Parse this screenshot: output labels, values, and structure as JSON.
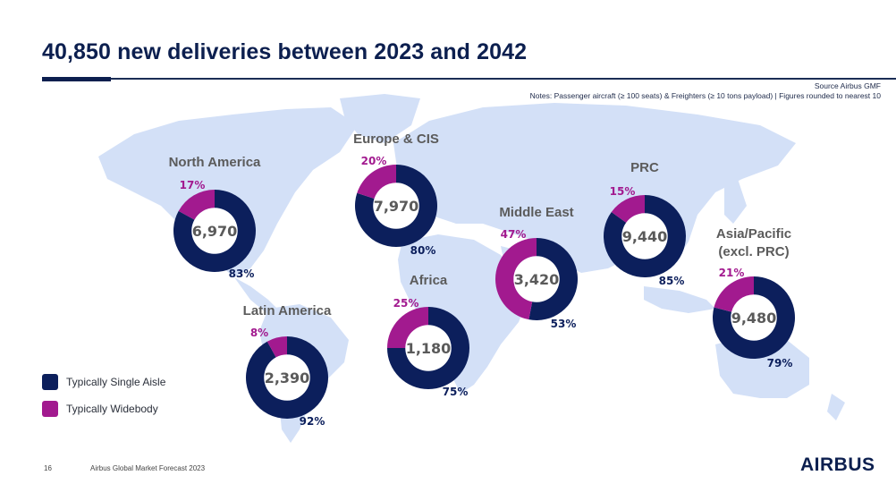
{
  "slide": {
    "title": "40,850 new deliveries between 2023 and 2042",
    "source": "Source Airbus GMF",
    "notes": "Notes: Passenger aircraft (≥ 100 seats) & Freighters (≥ 10 tons payload) | Figures rounded to nearest 10",
    "page_number": "16",
    "footer_text": "Airbus Global Market Forecast 2023",
    "logo_text": "AIRBUS"
  },
  "colors": {
    "single_aisle": "#0c1f5c",
    "widebody": "#a21a8f",
    "map_land": "#d3e0f7",
    "region_label": "#5b5b5b",
    "center_value": "#5a5a5a"
  },
  "legend": [
    {
      "label": "Typically Single Aisle",
      "color_key": "single_aisle"
    },
    {
      "label": "Typically Widebody",
      "color_key": "widebody"
    }
  ],
  "chart_data": {
    "type": "pie",
    "subtype": "donut-map",
    "title": "40,850 new deliveries between 2023 and 2042",
    "total": 40850,
    "series_names": [
      "Typically Single Aisle",
      "Typically Widebody"
    ],
    "regions": [
      {
        "name": "North America",
        "total": "6,970",
        "total_value": 6970,
        "single_aisle_pct": 83,
        "widebody_pct": 17
      },
      {
        "name": "Europe & CIS",
        "total": "7,970",
        "total_value": 7970,
        "single_aisle_pct": 80,
        "widebody_pct": 20
      },
      {
        "name": "Middle East",
        "total": "3,420",
        "total_value": 3420,
        "single_aisle_pct": 53,
        "widebody_pct": 47
      },
      {
        "name": "PRC",
        "total": "9,440",
        "total_value": 9440,
        "single_aisle_pct": 85,
        "widebody_pct": 15
      },
      {
        "name": "Asia/Pacific\n(excl. PRC)",
        "total": "9,480",
        "total_value": 9480,
        "single_aisle_pct": 79,
        "widebody_pct": 21
      },
      {
        "name": "Africa",
        "total": "1,180",
        "total_value": 1180,
        "single_aisle_pct": 75,
        "widebody_pct": 25
      },
      {
        "name": "Latin America",
        "total": "2,390",
        "total_value": 2390,
        "single_aisle_pct": 92,
        "widebody_pct": 8
      }
    ],
    "legend_position": "bottom-left"
  }
}
